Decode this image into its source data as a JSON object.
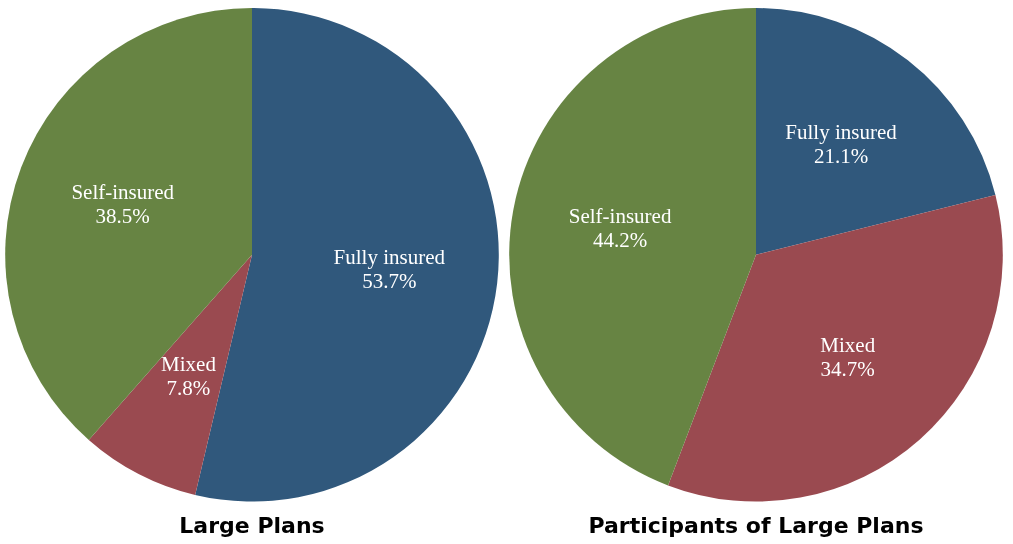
{
  "chart_data": [
    {
      "type": "pie",
      "title": "Large Plans",
      "categories": [
        "Fully insured",
        "Mixed",
        "Self-insured"
      ],
      "values": [
        53.7,
        7.8,
        38.5
      ],
      "colors": [
        "#30587c",
        "#9a4a50",
        "#678443"
      ],
      "value_labels": [
        "53.7%",
        "7.8%",
        "38.5%"
      ]
    },
    {
      "type": "pie",
      "title": "Participants of Large Plans",
      "categories": [
        "Fully insured",
        "Mixed",
        "Self-insured"
      ],
      "values": [
        21.1,
        34.7,
        44.2
      ],
      "colors": [
        "#30587c",
        "#9a4a50",
        "#678443"
      ],
      "value_labels": [
        "21.1%",
        "34.7%",
        "44.2%"
      ]
    }
  ]
}
